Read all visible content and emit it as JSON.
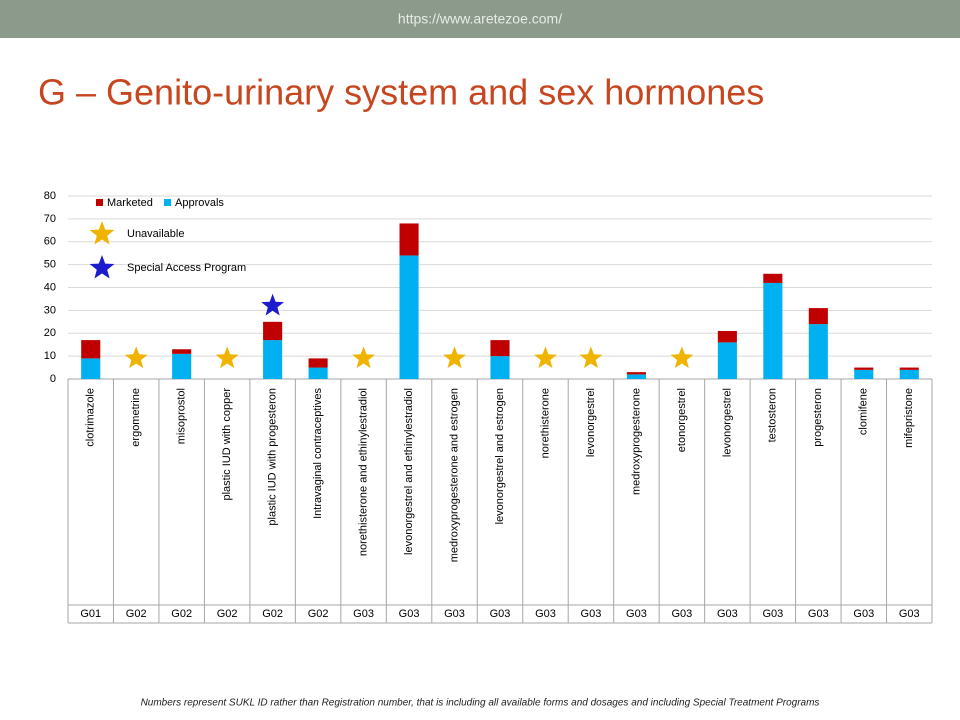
{
  "header": {
    "url": "https://www.aretezoe.com/"
  },
  "chart_data": {
    "type": "bar",
    "stacked": true,
    "title": "G – Genito-urinary system and sex hormones",
    "categories": [
      "clotrimazole",
      "ergometrine",
      "misoprostol",
      "plastic IUD with copper",
      "plastic IUD with progesteron",
      "Intravaginal contraceptives",
      "norethisterone and ethinylestradiol",
      "levonorgestrel and ethinylestradiol",
      "medroxyprogesterone and estrogen",
      "levonorgestrel and estrogen",
      "norethisterone",
      "levonorgestrel",
      "medroxyprogesterone",
      "etonorgestrel",
      "levonorgestrel",
      "testosteron",
      "progesteron",
      "clomifene",
      "mifepristone"
    ],
    "groups": [
      "G01",
      "G02",
      "G02",
      "G02",
      "G02",
      "G02",
      "G03",
      "G03",
      "G03",
      "G03",
      "G03",
      "G03",
      "G03",
      "G03",
      "G03",
      "G03",
      "G03",
      "G03",
      "G03"
    ],
    "series": [
      {
        "name": "Approvals",
        "color": "#00b0f0",
        "values": [
          9,
          0,
          11,
          0,
          17,
          5,
          0,
          54,
          0,
          10,
          0,
          0,
          2,
          0,
          16,
          42,
          24,
          4,
          4
        ]
      },
      {
        "name": "Marketed",
        "color": "#c00000",
        "values": [
          8,
          0,
          2,
          0,
          8,
          4,
          0,
          14,
          0,
          7,
          0,
          0,
          1,
          0,
          5,
          4,
          7,
          1,
          1
        ]
      },
      {
        "name": "Unavailable",
        "color": "#f0b400",
        "marker": "star",
        "values": [
          null,
          9,
          null,
          9,
          null,
          null,
          9,
          null,
          9,
          null,
          9,
          9,
          null,
          9,
          null,
          null,
          null,
          null,
          null
        ]
      },
      {
        "name": "Special Access Program",
        "color": "#1c1ccc",
        "marker": "star",
        "values": [
          null,
          null,
          null,
          null,
          32,
          null,
          null,
          null,
          null,
          null,
          null,
          null,
          null,
          null,
          null,
          null,
          null,
          null,
          null
        ]
      }
    ],
    "ylim": [
      0,
      80
    ],
    "yticks": [
      0,
      10,
      20,
      30,
      40,
      50,
      60,
      70,
      80
    ],
    "grid": true,
    "footnote": "Numbers represent SUKL ID rather than Registration number, that is including all available forms and dosages and including Special Treatment Programs"
  }
}
